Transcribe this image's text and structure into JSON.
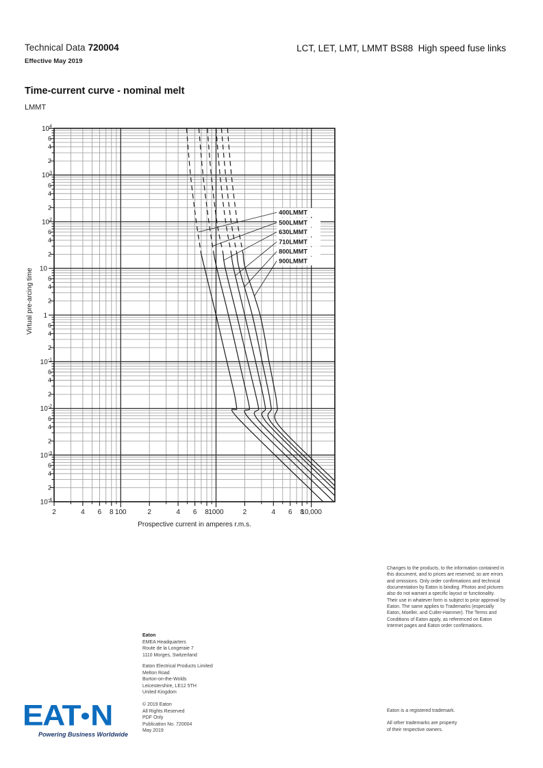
{
  "header": {
    "doc_type": "Technical Data",
    "doc_number": "720004",
    "effective": "Effective May 2019",
    "product_title": "LCT, LET, LMT, LMMT BS88  High speed fuse links"
  },
  "section": {
    "title": "Time-current curve - nominal melt",
    "family": "LMMT"
  },
  "chart_data": {
    "type": "line",
    "title": "LMMT time-current curve - nominal melt",
    "xlabel": "Prospective current in amperes r.m.s.",
    "ylabel": "Virtual pre-arcing time",
    "x_scale": "log",
    "y_scale": "log",
    "xlim": [
      20,
      17600
    ],
    "ylim": [
      0.0001,
      10000
    ],
    "grid": "log-log major and minor gridlines",
    "line_color": "#1a1a1a",
    "dashed_above_seconds": 20,
    "x_major_ticks": [
      100,
      1000,
      10000
    ],
    "x_labeled_ticks": [
      [
        20,
        "2"
      ],
      [
        40,
        "4"
      ],
      [
        60,
        "6"
      ],
      [
        80,
        "8"
      ],
      [
        100,
        "100"
      ],
      [
        200,
        "2"
      ],
      [
        400,
        "4"
      ],
      [
        600,
        "6"
      ],
      [
        800,
        "8"
      ],
      [
        1000,
        "1000"
      ],
      [
        2000,
        "2"
      ],
      [
        4000,
        "4"
      ],
      [
        6000,
        "6"
      ],
      [
        8000,
        "8"
      ],
      [
        10000,
        "10,000"
      ]
    ],
    "y_major_ticks": [
      {
        "t": 10000,
        "base": "10",
        "exp": "4"
      },
      {
        "t": 1000,
        "base": "10",
        "exp": "3"
      },
      {
        "t": 100,
        "base": "10",
        "exp": "2"
      },
      {
        "t": 10,
        "base": "10",
        "exp": ""
      },
      {
        "t": 1,
        "base": "1",
        "exp": ""
      },
      {
        "t": 0.1,
        "base": "10",
        "exp": "-1"
      },
      {
        "t": 0.01,
        "base": "10",
        "exp": "-2"
      },
      {
        "t": 0.001,
        "base": "10",
        "exp": "-3"
      },
      {
        "t": 0.0001,
        "base": "10",
        "exp": "-4"
      }
    ],
    "y_minor_label_values": [
      6,
      4,
      2
    ],
    "series": [
      {
        "name": "400LMMT",
        "points": [
          [
            490,
            10000
          ],
          [
            540,
            1000
          ],
          [
            620,
            100
          ],
          [
            700,
            20
          ],
          [
            760,
            10
          ],
          [
            1000,
            1
          ],
          [
            1300,
            0.1
          ],
          [
            1560,
            0.02
          ],
          [
            1650,
            0.01
          ],
          [
            1720,
            0.006
          ],
          [
            13300,
            0.0001
          ]
        ]
      },
      {
        "name": "500LMMT",
        "points": [
          [
            660,
            10000
          ],
          [
            730,
            1000
          ],
          [
            840,
            100
          ],
          [
            950,
            20
          ],
          [
            1020,
            10
          ],
          [
            1350,
            1
          ],
          [
            1750,
            0.1
          ],
          [
            2100,
            0.02
          ],
          [
            2250,
            0.01
          ],
          [
            2320,
            0.0055
          ],
          [
            17200,
            0.0001
          ]
        ]
      },
      {
        "name": "630LMMT",
        "points": [
          [
            810,
            10000
          ],
          [
            890,
            1000
          ],
          [
            1020,
            100
          ],
          [
            1190,
            20
          ],
          [
            1250,
            10
          ],
          [
            1650,
            1
          ],
          [
            2150,
            0.1
          ],
          [
            2600,
            0.02
          ],
          [
            2800,
            0.01
          ],
          [
            2900,
            0.005
          ],
          [
            17600,
            0.000135
          ]
        ]
      },
      {
        "name": "710LMMT",
        "points": [
          [
            1000,
            10000
          ],
          [
            1100,
            1000
          ],
          [
            1260,
            100
          ],
          [
            1450,
            20
          ],
          [
            1530,
            10
          ],
          [
            2000,
            1
          ],
          [
            2600,
            0.1
          ],
          [
            3100,
            0.02
          ],
          [
            3300,
            0.01
          ],
          [
            3450,
            0.0048
          ],
          [
            17600,
            0.00018
          ]
        ]
      },
      {
        "name": "800LMMT",
        "points": [
          [
            1140,
            10000
          ],
          [
            1260,
            1000
          ],
          [
            1440,
            100
          ],
          [
            1660,
            20
          ],
          [
            1750,
            10
          ],
          [
            2400,
            1
          ],
          [
            3050,
            0.1
          ],
          [
            3600,
            0.02
          ],
          [
            3800,
            0.01
          ],
          [
            3950,
            0.0045
          ],
          [
            17600,
            0.00022
          ]
        ]
      },
      {
        "name": "900LMMT",
        "points": [
          [
            1320,
            10000
          ],
          [
            1450,
            1000
          ],
          [
            1670,
            100
          ],
          [
            1930,
            20
          ],
          [
            2030,
            10
          ],
          [
            2900,
            1
          ],
          [
            3600,
            0.1
          ],
          [
            4200,
            0.02
          ],
          [
            4400,
            0.01
          ],
          [
            4600,
            0.0042
          ],
          [
            17600,
            0.00028
          ]
        ]
      }
    ],
    "annotations": [
      {
        "label": "400LMMT",
        "label_at": [
          4550,
          158
        ],
        "leader_to": [
          650,
          60
        ]
      },
      {
        "label": "500LMMT",
        "label_at": [
          4550,
          96
        ],
        "leader_to": [
          920,
          30
        ]
      },
      {
        "label": "630LMMT",
        "label_at": [
          4550,
          60
        ],
        "leader_to": [
          1210,
          15
        ]
      },
      {
        "label": "710LMMT",
        "label_at": [
          4550,
          37
        ],
        "leader_to": [
          1595,
          7
        ]
      },
      {
        "label": "800LMMT",
        "label_at": [
          4550,
          23
        ],
        "leader_to": [
          1984,
          4
        ]
      },
      {
        "label": "900LMMT",
        "label_at": [
          4550,
          14.4
        ],
        "leader_to": [
          2516,
          2.5
        ]
      }
    ]
  },
  "footer": {
    "legal": "Changes to the products, to the information contained in this document, and to prices are reserved; so are errors and omissions. Only order confirmations and technical documentation by Eaton is binding. Photos and pictures also do not warrant a specific layout or functionality. Their use in whatever form is subject to prior approval by Eaton. The same applies to Trademarks (especially Eaton, Moeller, and Cutler-Hammer). The Terms and Conditions of Eaton apply, as referenced on Eaton Internet pages and Eaton order confirmations.",
    "address_hq": [
      "Eaton",
      "EMEA Headquarters",
      "Route de la Longeraie 7",
      "1110 Morges, Switzerland"
    ],
    "address_uk": [
      "Eaton Electrical Products Limited",
      "Melton Road",
      "Burton-on-the-Wolds",
      "Leicestershire, LE12 5TH",
      "United Kingdom"
    ],
    "copyright": [
      "© 2019 Eaton",
      "All Rights Reserved",
      "PDF Only",
      "Publication No. 720004",
      "May 2019"
    ],
    "trademark1": "Eaton is a registered trademark.",
    "trademark2": [
      "All other trademarks are property",
      "of their respective owners."
    ]
  },
  "logo": {
    "wordmark_left": "EAT",
    "wordmark_right": "N",
    "tagline": "Powering Business Worldwide",
    "blue": "#0d6cbe",
    "navy": "#1d3a6e"
  }
}
